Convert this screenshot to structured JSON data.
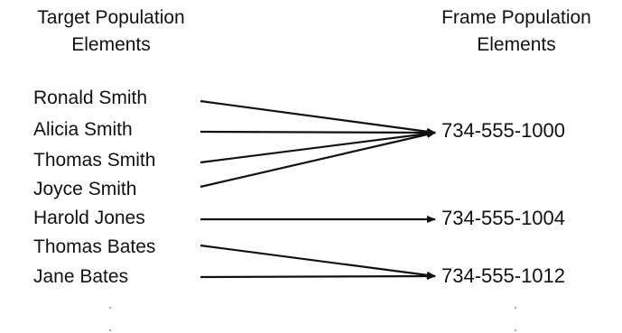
{
  "headers": {
    "target": [
      "Target Population",
      "Elements"
    ],
    "frame": [
      "Frame Population",
      "Elements"
    ]
  },
  "target_elements": [
    "Ronald Smith",
    "Alicia Smith",
    "Thomas Smith",
    "Joyce Smith",
    "Harold Jones",
    "Thomas Bates",
    "Jane Bates"
  ],
  "frame_elements": [
    "734-555-1000",
    "734-555-1004",
    "734-555-1012"
  ],
  "mappings": [
    {
      "from": "Ronald Smith",
      "to": "734-555-1000"
    },
    {
      "from": "Alicia Smith",
      "to": "734-555-1000"
    },
    {
      "from": "Thomas Smith",
      "to": "734-555-1000"
    },
    {
      "from": "Joyce Smith",
      "to": "734-555-1000"
    },
    {
      "from": "Harold Jones",
      "to": "734-555-1004"
    },
    {
      "from": "Thomas Bates",
      "to": "734-555-1012"
    },
    {
      "from": "Jane Bates",
      "to": "734-555-1012"
    }
  ],
  "colors": {
    "line": "#111111",
    "text": "#111111"
  }
}
